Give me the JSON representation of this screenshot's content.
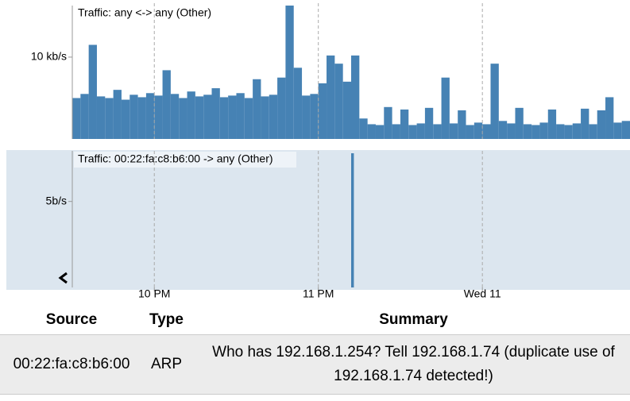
{
  "chart_data": [
    {
      "type": "histogram",
      "title": "Traffic: any <-> any (Other)",
      "color": "#4682b4",
      "bins": [
        30,
        33,
        36,
        39,
        42,
        45,
        48,
        51,
        54,
        57,
        60,
        63,
        66,
        69,
        72,
        75,
        78,
        81,
        84,
        87,
        90,
        93,
        96,
        99,
        102,
        105,
        108,
        111,
        114,
        117,
        120,
        123,
        126,
        129,
        132,
        135,
        138,
        141,
        144,
        147,
        150,
        153,
        156,
        159,
        162,
        165,
        168,
        171,
        174,
        177,
        180,
        183,
        186,
        189,
        192,
        195,
        198,
        201,
        204,
        207,
        210,
        213,
        216,
        219,
        222,
        225,
        228,
        231,
        234
      ],
      "values": [
        5.0,
        5.5,
        11.5,
        5.2,
        5.0,
        6.0,
        4.8,
        5.4,
        5.1,
        5.6,
        5.3,
        8.4,
        5.5,
        5.0,
        5.8,
        5.2,
        5.4,
        6.2,
        5.1,
        5.3,
        5.6,
        5.0,
        7.3,
        5.2,
        5.4,
        7.5,
        16.3,
        8.7,
        5.3,
        5.5,
        6.8,
        10.2,
        9.2,
        7.0,
        10.2,
        2.5,
        1.8,
        1.7,
        3.9,
        1.8,
        3.6,
        1.7,
        1.9,
        3.8,
        1.8,
        7.5,
        1.9,
        3.5,
        1.7,
        2.0,
        1.8,
        9.2,
        2.2,
        1.9,
        3.8,
        1.8,
        1.7,
        2.0,
        3.6,
        1.8,
        1.7,
        1.9,
        3.7,
        1.8,
        3.5,
        5.1,
        2.0,
        2.2
      ],
      "xlim": [
        30,
        234
      ],
      "ylim": [
        0,
        16.3
      ],
      "yticks": [
        {
          "value": 10,
          "label": "10 kb/s"
        }
      ]
    },
    {
      "type": "histogram",
      "title": "Traffic: 00:22:fa:c8:b6:00 -> any (Other)",
      "color": "#4682b4",
      "bins": [
        132,
        133
      ],
      "values": [
        7.8
      ],
      "xlim": [
        30,
        234
      ],
      "ylim": [
        0,
        7.8
      ],
      "yticks": [
        {
          "value": 5,
          "label": "5b/s"
        }
      ],
      "xticks": [
        {
          "value": 60,
          "label": "10 PM"
        },
        {
          "value": 120,
          "label": "11 PM"
        },
        {
          "value": 180,
          "label": "Wed 11"
        }
      ]
    }
  ],
  "table": {
    "headers": [
      "Source",
      "Type",
      "Summary"
    ],
    "rows": [
      [
        "00:22:fa:c8:b6:00",
        "ARP",
        "Who has 192.168.1.254? Tell 192.168.1.74 (duplicate use of 192.168.1.74 detected!)"
      ]
    ]
  }
}
